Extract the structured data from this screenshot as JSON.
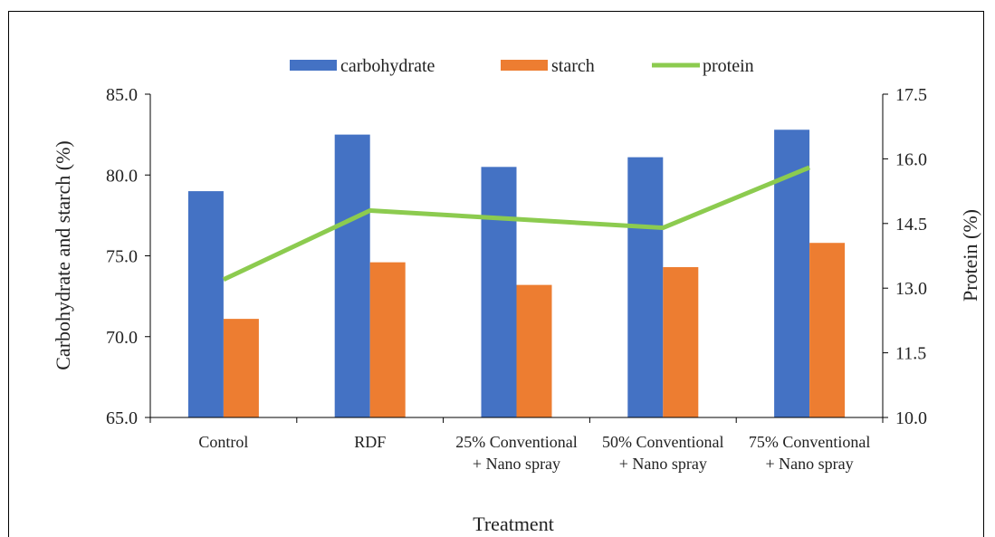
{
  "chart_data": {
    "type": "bar",
    "categories": [
      [
        "Control"
      ],
      [
        "RDF"
      ],
      [
        "25% Conventional",
        "+ Nano spray"
      ],
      [
        "50% Conventional",
        "+ Nano spray"
      ],
      [
        "75% Conventional",
        "+ Nano spray"
      ]
    ],
    "series": [
      {
        "name": "carbohydrate",
        "type": "bar",
        "axis": "left",
        "color": "#4472C4",
        "values": [
          79.0,
          82.5,
          80.5,
          81.1,
          82.8
        ]
      },
      {
        "name": "starch",
        "type": "bar",
        "axis": "left",
        "color": "#ED7D31",
        "values": [
          71.1,
          74.6,
          73.2,
          74.3,
          75.8
        ]
      },
      {
        "name": "protein",
        "type": "line",
        "axis": "right",
        "color": "#8CCB4F",
        "values": [
          13.2,
          14.8,
          14.6,
          14.4,
          15.8
        ]
      }
    ],
    "xlabel": "Treatment",
    "ylabel": "Carbohydrate and starch (%)",
    "y2label": "Protein (%)",
    "ylim": [
      65,
      85
    ],
    "y2lim": [
      10,
      17.5
    ],
    "yticks": [
      "65.0",
      "70.0",
      "75.0",
      "80.0",
      "85.0"
    ],
    "y2ticks": [
      "10.0",
      "11.5",
      "13.0",
      "14.5",
      "16.0",
      "17.5"
    ],
    "legend_position": "top",
    "grid": false
  }
}
